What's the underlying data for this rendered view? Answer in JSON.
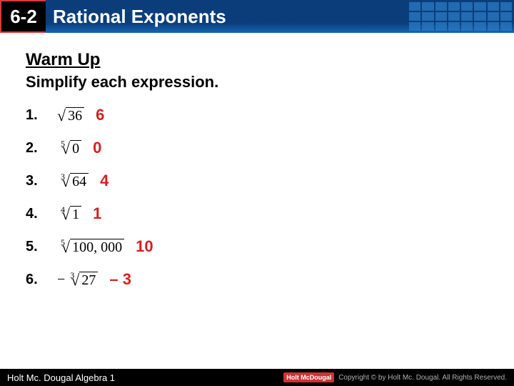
{
  "header": {
    "section_number": "6-2",
    "title": "Rational Exponents",
    "title_bg_gradient": [
      "#0b3d7a",
      "#1566b3"
    ],
    "badge_bg": "#000000",
    "badge_border": "#d93b3b"
  },
  "content": {
    "warmup_label": "Warm Up",
    "instruction": "Simplify each expression.",
    "problems": [
      {
        "num": "1.",
        "index": "",
        "radicand": "36",
        "negative": false,
        "answer": "6"
      },
      {
        "num": "2.",
        "index": "5",
        "radicand": "0",
        "negative": false,
        "answer": "0"
      },
      {
        "num": "3.",
        "index": "3",
        "radicand": "64",
        "negative": false,
        "answer": "4"
      },
      {
        "num": "4.",
        "index": "4",
        "radicand": "1",
        "negative": false,
        "answer": "1"
      },
      {
        "num": "5.",
        "index": "5",
        "radicand": "100, 000",
        "negative": false,
        "answer": "10"
      },
      {
        "num": "6.",
        "index": "3",
        "radicand": "27",
        "negative": true,
        "answer": "– 3"
      }
    ],
    "answer_color": "#d42020"
  },
  "footer": {
    "left": "Holt Mc. Dougal Algebra 1",
    "logo": "Holt McDougal",
    "copyright": "Copyright © by Holt Mc. Dougal. All Rights Reserved."
  }
}
